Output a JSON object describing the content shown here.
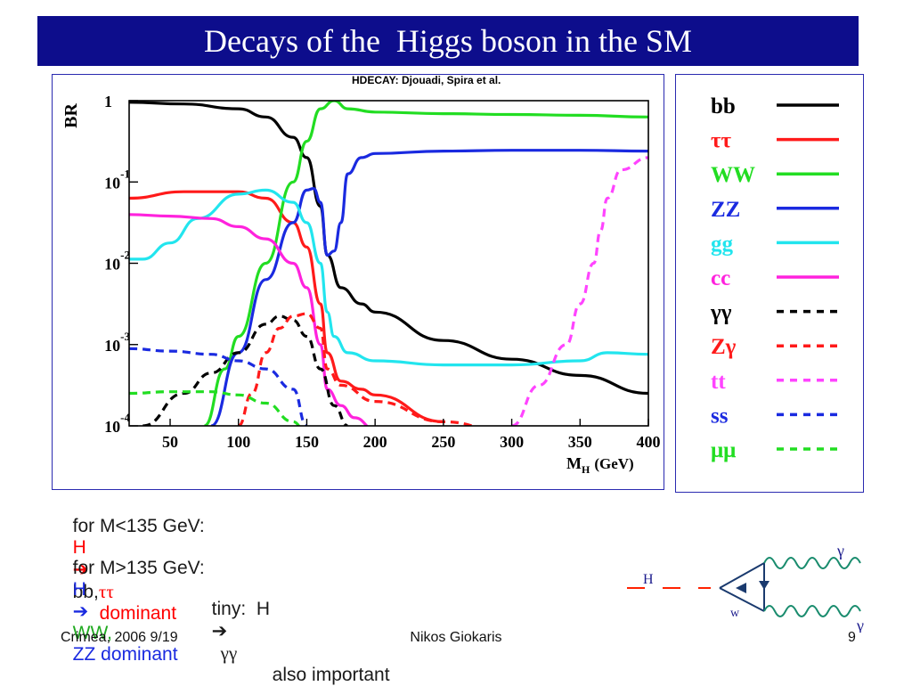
{
  "slide": {
    "title": "Decays of the  Higgs boson in the SM",
    "credit": "HDECAY:  Djouadi, Spira et al.",
    "footer_left": "Crimea, 2006 9/19",
    "footer_center": "Nikos Giokaris",
    "footer_right": "9"
  },
  "text_lines": {
    "line1": {
      "a": "for M<135 GeV:",
      "b": "H",
      "c": "bb,",
      "d": "ττ",
      "e": "dominant"
    },
    "line2": {
      "a": "for M>135 GeV:",
      "b": "H",
      "c": "WW,",
      "d": "ZZ dominant"
    },
    "line3": {
      "a": "tiny:  H",
      "b": "γγ",
      "c": "also important"
    }
  },
  "diagram": {
    "h_label": "H",
    "w_label": "w",
    "gamma_top": "γ",
    "gamma_bottom": "γ"
  },
  "chart_data": {
    "type": "line",
    "ylabel": "BR",
    "xlabel": "M",
    "xlabel_sub": "H",
    "xlabel_unit": "(GeV)",
    "xlim": [
      20,
      400
    ],
    "ylim_log10": [
      -4,
      0
    ],
    "y_scale": "log",
    "x_ticks": [
      50,
      100,
      150,
      200,
      250,
      300,
      350,
      400
    ],
    "y_ticks": [
      {
        "value": 0,
        "base": "1",
        "exp": ""
      },
      {
        "value": -1,
        "base": "10",
        "exp": "-1"
      },
      {
        "value": -2,
        "base": "10",
        "exp": "-2"
      },
      {
        "value": -3,
        "base": "10",
        "exp": "-3"
      },
      {
        "value": -4,
        "base": "10",
        "exp": "-4"
      }
    ],
    "grid": false,
    "legend_position": "right",
    "series": [
      {
        "name": "bb",
        "color": "#000000",
        "dash": false,
        "x": [
          20,
          60,
          100,
          120,
          140,
          150,
          160,
          165,
          175,
          190,
          200,
          250,
          300,
          350,
          400
        ],
        "y": [
          -0.02,
          -0.04,
          -0.1,
          -0.2,
          -0.45,
          -0.7,
          -1.3,
          -1.9,
          -2.3,
          -2.5,
          -2.6,
          -2.95,
          -3.18,
          -3.38,
          -3.6
        ]
      },
      {
        "name": "ττ",
        "color": "#ff1a1a",
        "dash": false,
        "x": [
          20,
          60,
          100,
          120,
          140,
          150,
          160,
          165,
          175,
          190,
          200,
          250
        ],
        "y": [
          -1.2,
          -1.12,
          -1.12,
          -1.2,
          -1.5,
          -1.8,
          -2.5,
          -3.1,
          -3.45,
          -3.55,
          -3.62,
          -3.95
        ]
      },
      {
        "name": "WW",
        "color": "#22dd22",
        "dash": false,
        "x": [
          75,
          90,
          100,
          120,
          140,
          150,
          160,
          170,
          180,
          200,
          250,
          300,
          350,
          400
        ],
        "y": [
          -4,
          -3.3,
          -2.9,
          -2.0,
          -1.0,
          -0.5,
          -0.1,
          0,
          -0.1,
          -0.14,
          -0.16,
          -0.17,
          -0.18,
          -0.2
        ]
      },
      {
        "name": "ZZ",
        "color": "#1a2ae0",
        "dash": false,
        "x": [
          80,
          100,
          120,
          140,
          150,
          155,
          160,
          165,
          170,
          175,
          180,
          190,
          200,
          250,
          300,
          350,
          400
        ],
        "y": [
          -4,
          -3.1,
          -2.2,
          -1.5,
          -1.1,
          -1.08,
          -1.25,
          -1.9,
          -1.85,
          -1.5,
          -0.9,
          -0.7,
          -0.65,
          -0.62,
          -0.61,
          -0.61,
          -0.62
        ]
      },
      {
        "name": "gg",
        "color": "#22e5ee",
        "dash": false,
        "x": [
          20,
          30,
          50,
          70,
          100,
          120,
          140,
          150,
          160,
          165,
          170,
          180,
          200,
          250,
          300,
          350,
          370,
          400
        ],
        "y": [
          -1.95,
          -1.95,
          -1.75,
          -1.45,
          -1.15,
          -1.1,
          -1.25,
          -1.5,
          -2.0,
          -2.6,
          -2.9,
          -3.1,
          -3.2,
          -3.25,
          -3.25,
          -3.2,
          -3.1,
          -3.12
        ]
      },
      {
        "name": "cc",
        "color": "#ff22dd",
        "dash": false,
        "x": [
          20,
          50,
          80,
          100,
          120,
          140,
          150,
          160,
          165,
          175,
          185,
          200
        ],
        "y": [
          -1.4,
          -1.42,
          -1.45,
          -1.55,
          -1.7,
          -2.0,
          -2.3,
          -3.0,
          -3.55,
          -3.75,
          -3.9,
          -4.05
        ]
      },
      {
        "name": "γγ",
        "color": "#000000",
        "dash": true,
        "x": [
          30,
          60,
          80,
          100,
          120,
          130,
          140,
          150,
          160,
          170,
          180
        ],
        "y": [
          -4,
          -3.6,
          -3.35,
          -3.1,
          -2.75,
          -2.65,
          -2.7,
          -2.9,
          -3.3,
          -3.75,
          -4
        ]
      },
      {
        "name": "Zγ",
        "color": "#ff1a1a",
        "dash": true,
        "x": [
          100,
          110,
          120,
          130,
          140,
          150,
          160,
          165,
          175,
          200,
          250,
          300
        ],
        "y": [
          -4,
          -3.6,
          -3.1,
          -2.8,
          -2.65,
          -2.62,
          -2.8,
          -3.3,
          -3.5,
          -3.7,
          -3.95,
          -4.1
        ]
      },
      {
        "name": "tt",
        "color": "#ff44ff",
        "dash": true,
        "x": [
          300,
          320,
          340,
          350,
          360,
          365,
          370,
          380,
          400
        ],
        "y": [
          -4,
          -3.5,
          -3.0,
          -2.5,
          -2.0,
          -1.6,
          -1.2,
          -0.85,
          -0.7
        ]
      },
      {
        "name": "ss",
        "color": "#1a2ae0",
        "dash": true,
        "x": [
          20,
          50,
          80,
          100,
          120,
          140,
          150
        ],
        "y": [
          -3.05,
          -3.08,
          -3.12,
          -3.2,
          -3.3,
          -3.55,
          -4
        ]
      },
      {
        "name": "μμ",
        "color": "#22dd22",
        "dash": true,
        "x": [
          20,
          50,
          80,
          100,
          120,
          140,
          150
        ],
        "y": [
          -3.6,
          -3.58,
          -3.58,
          -3.62,
          -3.72,
          -3.95,
          -4.1
        ]
      }
    ]
  }
}
